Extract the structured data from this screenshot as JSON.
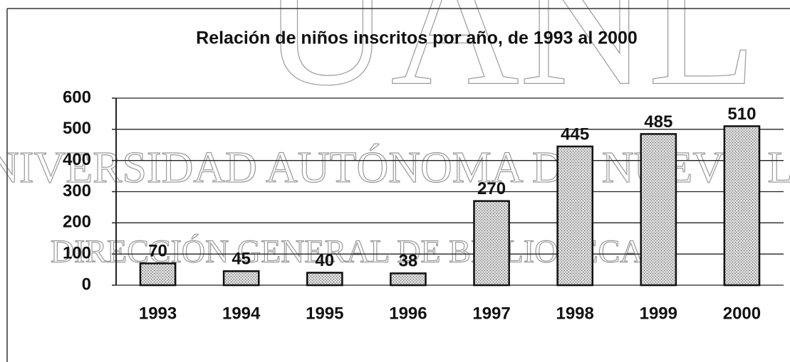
{
  "chart_data": {
    "type": "bar",
    "title": "Relación de niños inscritos por año, de 1993 al 2000",
    "categories": [
      "1993",
      "1994",
      "1995",
      "1996",
      "1997",
      "1998",
      "1999",
      "2000"
    ],
    "values": [
      70,
      45,
      40,
      38,
      270,
      445,
      485,
      510
    ],
    "color": "#b4b4b4",
    "ylim": [
      0,
      600
    ],
    "yticks": [
      0,
      100,
      200,
      300,
      400,
      500,
      600
    ],
    "grid": true,
    "watermarks": [
      "UANL",
      "UNIVERSIDAD AUTÓNOMA DE NUEVO LEÓN",
      "DIRECCIÓN GENERAL DE BIBLIOTECAS"
    ]
  }
}
